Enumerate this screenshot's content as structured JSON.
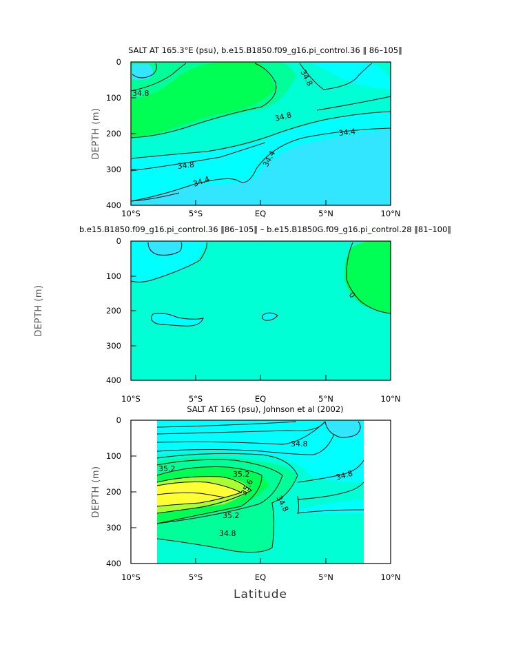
{
  "figure": {
    "xlabel": "Latitude"
  },
  "colors": {
    "cyan_light": "#33e6ff",
    "cyan": "#00ffff",
    "aqua_green": "#00ffd5",
    "spring": "#00ff99",
    "green": "#00ff55",
    "lime": "#aaff33",
    "yellow": "#ffff33",
    "panel2_bg": "#00ffd5"
  },
  "chart_data": [
    {
      "type": "heatmap",
      "title": "SALT AT 165.3°E (psu), b.e15.B1850.f09_g16.pi_control.36 ‖ 86–105‖",
      "ylabel": "DEPTH (m)",
      "xlim": [
        -10,
        10
      ],
      "ylim": [
        400,
        0
      ],
      "xticks": [
        "10°S",
        "5°S",
        "EQ",
        "5°N",
        "10°N"
      ],
      "yticks": [
        "0",
        "100",
        "200",
        "300",
        "400"
      ],
      "contour_labels": [
        "34.8",
        "34.8",
        "34.8",
        "34.4",
        "34.8",
        "34.4",
        "34.4"
      ]
    },
    {
      "type": "heatmap",
      "title": "b.e15.B1850.f09_g16.pi_control.36 ‖86–105‖ – b.e15.B1850G.f09_g16.pi_control.28 ‖81–100‖",
      "ylabel": "DEPTH (m)",
      "xlim": [
        -10,
        10
      ],
      "ylim": [
        400,
        0
      ],
      "xticks": [
        "10°S",
        "5°S",
        "EQ",
        "5°N",
        "10°N"
      ],
      "yticks": [
        "0",
        "100",
        "200",
        "300",
        "400"
      ],
      "contour_labels": [
        "0"
      ]
    },
    {
      "type": "heatmap",
      "title": "SALT AT 165 (psu), Johnson et al (2002)",
      "ylabel": "DEPTH (m)",
      "xlim": [
        -10,
        10
      ],
      "ylim": [
        400,
        0
      ],
      "xticks": [
        "10°S",
        "5°S",
        "EQ",
        "5°N",
        "10°N"
      ],
      "yticks": [
        "0",
        "100",
        "200",
        "300",
        "400"
      ],
      "data_xrange": [
        -8,
        8
      ],
      "contour_labels": [
        "35.2",
        "35.2",
        "35.6",
        "35.2",
        "34.8",
        "34.8",
        "34.8",
        "34.8"
      ]
    }
  ]
}
